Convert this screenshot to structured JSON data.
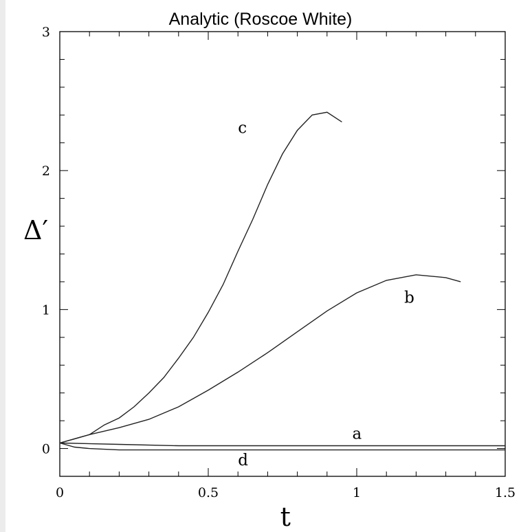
{
  "chart_data": {
    "type": "line",
    "title": "Analytic (Roscoe White)",
    "xlabel": "t",
    "ylabel": "Δ′",
    "xlim": [
      0,
      1.5
    ],
    "ylim": [
      -0.2,
      3
    ],
    "xticks": [
      0,
      0.5,
      1,
      1.5
    ],
    "xtick_labels": [
      "0",
      "0.5",
      "1",
      "1.5"
    ],
    "yticks": [
      0,
      1,
      2,
      3
    ],
    "ytick_labels": [
      "0",
      "1",
      "2",
      "3"
    ],
    "grid": false,
    "legend": "none",
    "series": [
      {
        "name": "a",
        "x": [
          0,
          0.2,
          0.4,
          0.6,
          0.8,
          1.0,
          1.2,
          1.4,
          1.5
        ],
        "y": [
          0.04,
          0.03,
          0.02,
          0.02,
          0.02,
          0.02,
          0.02,
          0.02,
          0.02
        ]
      },
      {
        "name": "b",
        "x": [
          0,
          0.05,
          0.1,
          0.2,
          0.3,
          0.4,
          0.5,
          0.6,
          0.7,
          0.8,
          0.9,
          1.0,
          1.1,
          1.2,
          1.3,
          1.35
        ],
        "y": [
          0.04,
          0.07,
          0.1,
          0.15,
          0.21,
          0.3,
          0.42,
          0.55,
          0.69,
          0.84,
          0.99,
          1.12,
          1.21,
          1.25,
          1.23,
          1.2
        ]
      },
      {
        "name": "c",
        "x": [
          0,
          0.05,
          0.1,
          0.15,
          0.2,
          0.25,
          0.3,
          0.35,
          0.4,
          0.45,
          0.5,
          0.55,
          0.6,
          0.65,
          0.7,
          0.75,
          0.8,
          0.85,
          0.9,
          0.95
        ],
        "y": [
          0.04,
          0.07,
          0.1,
          0.17,
          0.22,
          0.3,
          0.4,
          0.51,
          0.65,
          0.8,
          0.98,
          1.18,
          1.42,
          1.65,
          1.9,
          2.12,
          2.29,
          2.4,
          2.42,
          2.35
        ]
      },
      {
        "name": "d",
        "x": [
          0,
          0.05,
          0.1,
          0.2,
          0.4,
          0.6,
          0.8,
          1.0,
          1.2,
          1.4,
          1.5
        ],
        "y": [
          0.04,
          0.01,
          0.0,
          -0.01,
          -0.01,
          -0.01,
          -0.01,
          -0.01,
          -0.01,
          -0.01,
          -0.01
        ]
      }
    ]
  }
}
